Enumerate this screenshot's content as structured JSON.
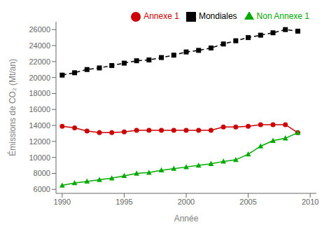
{
  "chart_data": {
    "type": "line",
    "x": [
      1990,
      1991,
      1992,
      1993,
      1994,
      1995,
      1996,
      1997,
      1998,
      1999,
      2000,
      2001,
      2002,
      2003,
      2004,
      2005,
      2006,
      2007,
      2008,
      2009
    ],
    "series": [
      {
        "name": "Mondiales",
        "color": "#000000",
        "marker": "square",
        "line_style": "dashed",
        "values": [
          20300,
          20600,
          21000,
          21200,
          21500,
          21800,
          22100,
          22200,
          22500,
          22800,
          23200,
          23400,
          23700,
          24200,
          24600,
          25000,
          25300,
          25600,
          26000,
          25800
        ]
      },
      {
        "name": "Annexe 1",
        "color": "#cc0000",
        "marker": "circle",
        "line_style": "solid",
        "values": [
          13900,
          13700,
          13300,
          13100,
          13100,
          13200,
          13400,
          13400,
          13400,
          13400,
          13400,
          13400,
          13400,
          13800,
          13800,
          13900,
          14100,
          14100,
          14100,
          13100
        ]
      },
      {
        "name": "Non Annexe 1",
        "color": "#00aa00",
        "marker": "triangle",
        "line_style": "solid",
        "values": [
          6500,
          6800,
          7000,
          7200,
          7400,
          7700,
          8000,
          8100,
          8400,
          8600,
          8800,
          9000,
          9200,
          9500,
          9700,
          10400,
          11400,
          12100,
          12400,
          13100
        ]
      }
    ],
    "xlabel": "Année",
    "ylabel": "Émissions de CO₂ (Mt/an)",
    "xlim": [
      1989.5,
      2010.5
    ],
    "xticks": [
      1990,
      1995,
      2000,
      2005,
      2010
    ],
    "ylim": [
      5500,
      27000
    ],
    "yticks": [
      6000,
      8000,
      10000,
      12000,
      14000,
      16000,
      18000,
      20000,
      22000,
      24000,
      26000
    ],
    "grid": false,
    "legend": "upper right"
  }
}
